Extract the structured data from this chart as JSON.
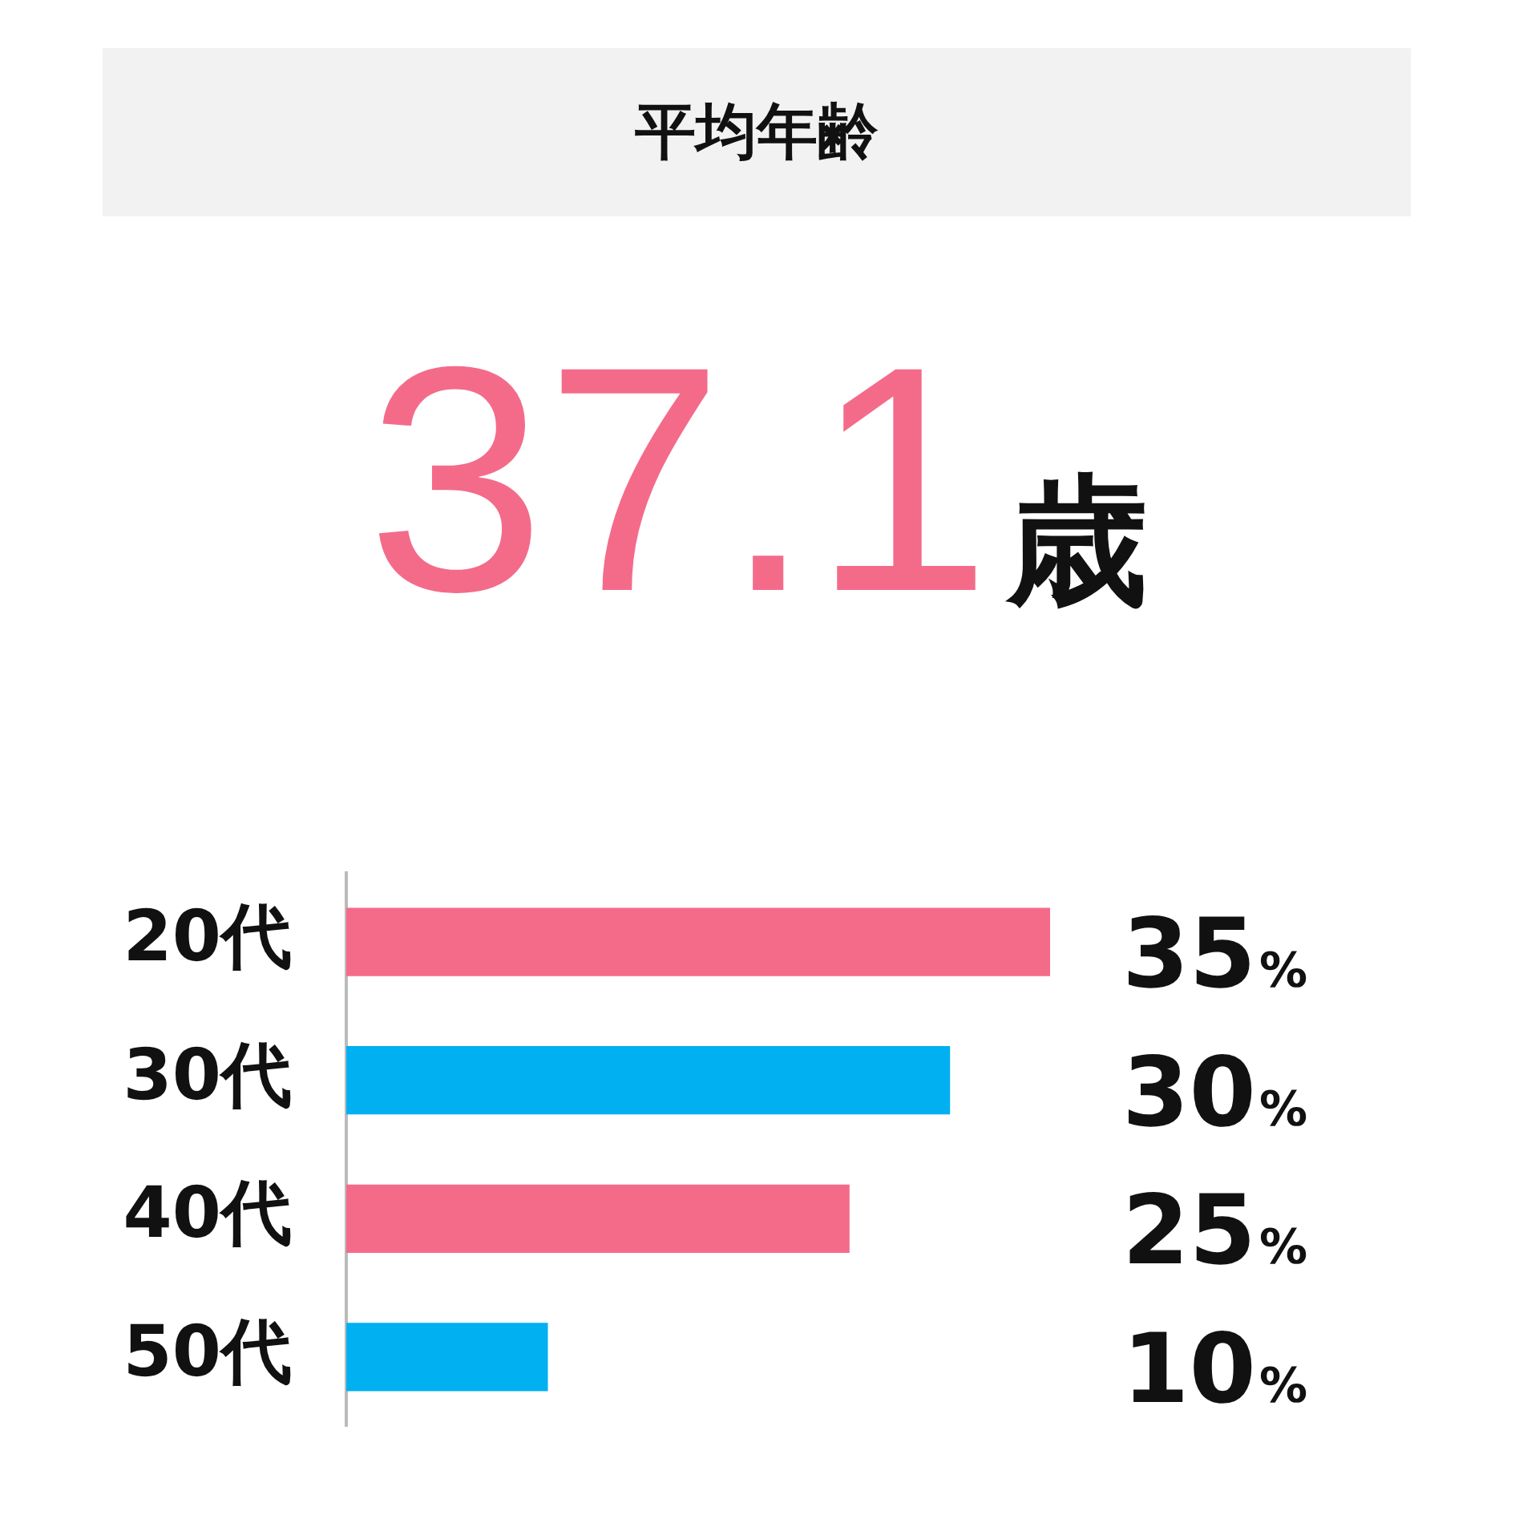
{
  "chart_data": {
    "type": "bar",
    "orientation": "horizontal",
    "title": "平均年齢",
    "subtitle": "37.1歳",
    "categories": [
      "20代",
      "30代",
      "40代",
      "50代"
    ],
    "values": [
      35,
      30,
      25,
      10
    ],
    "colors": [
      "#f46b8a",
      "#00b0f0",
      "#f46b8a",
      "#00b0f0"
    ],
    "value_labels": [
      "35%",
      "30%",
      "25%",
      "10%"
    ],
    "grid": false,
    "legend": false
  }
}
